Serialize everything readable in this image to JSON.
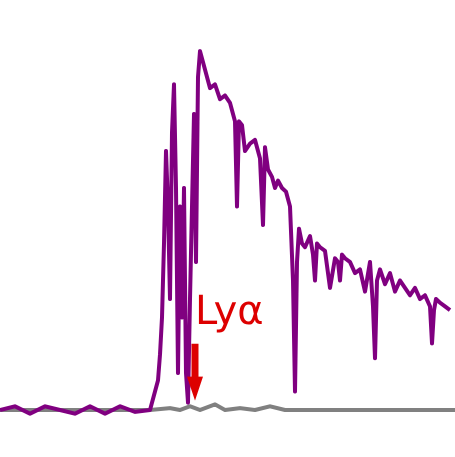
{
  "chart_data": {
    "type": "line",
    "title": "",
    "xlabel": "",
    "ylabel": "",
    "xlim": [
      0,
      455
    ],
    "ylim": [
      -0.05,
      1.0
    ],
    "grid": false,
    "legend": "none",
    "series": [
      {
        "color": "#800080",
        "x": [
          0,
          15,
          30,
          45,
          60,
          75,
          90,
          105,
          120,
          135,
          150,
          155,
          158,
          160,
          162,
          164,
          166,
          168,
          170,
          172,
          174,
          176,
          178,
          180,
          182,
          184,
          186,
          188,
          190,
          192,
          194,
          196,
          198,
          200,
          202,
          204,
          210,
          215,
          220,
          225,
          230,
          235,
          237,
          239,
          242,
          245,
          250,
          255,
          260,
          263,
          265,
          268,
          272,
          275,
          278,
          282,
          286,
          290,
          293,
          295,
          297,
          299,
          302,
          305,
          310,
          313,
          315,
          317,
          320,
          325,
          330,
          335,
          338,
          340,
          342,
          345,
          350,
          355,
          360,
          365,
          370,
          373,
          375,
          377,
          380,
          385,
          390,
          395,
          400,
          405,
          410,
          415,
          420,
          425,
          430,
          432,
          434,
          436,
          440,
          445,
          450
        ],
        "y": [
          0.0,
          0.01,
          -0.01,
          0.01,
          0.0,
          -0.01,
          0.01,
          -0.01,
          0.01,
          -0.005,
          0.0,
          0.05,
          0.08,
          0.15,
          0.25,
          0.45,
          0.7,
          0.55,
          0.3,
          0.75,
          0.88,
          0.6,
          0.1,
          0.55,
          0.25,
          0.6,
          0.1,
          0.02,
          0.3,
          0.55,
          0.8,
          0.4,
          0.9,
          0.97,
          0.95,
          0.93,
          0.87,
          0.88,
          0.84,
          0.85,
          0.83,
          0.78,
          0.55,
          0.78,
          0.77,
          0.7,
          0.72,
          0.73,
          0.68,
          0.5,
          0.71,
          0.65,
          0.63,
          0.6,
          0.62,
          0.6,
          0.59,
          0.55,
          0.35,
          0.05,
          0.4,
          0.49,
          0.45,
          0.44,
          0.47,
          0.42,
          0.35,
          0.45,
          0.44,
          0.43,
          0.33,
          0.41,
          0.4,
          0.35,
          0.42,
          0.41,
          0.4,
          0.37,
          0.38,
          0.32,
          0.4,
          0.28,
          0.14,
          0.35,
          0.38,
          0.34,
          0.37,
          0.32,
          0.35,
          0.33,
          0.31,
          0.33,
          0.3,
          0.31,
          0.28,
          0.18,
          0.27,
          0.3,
          0.29,
          0.28,
          0.27
        ]
      },
      {
        "color": "#808080",
        "x": [
          0,
          30,
          60,
          90,
          120,
          150,
          170,
          180,
          190,
          200,
          215,
          225,
          240,
          255,
          270,
          285,
          300,
          320,
          350,
          400,
          455
        ],
        "y": [
          0.0,
          0.0,
          0.0,
          0.0,
          0.0,
          0.0,
          0.005,
          0.0,
          0.01,
          0.0,
          0.015,
          0.0,
          0.005,
          0.0,
          0.01,
          0.0,
          0.0,
          0.0,
          0.0,
          0.0,
          0.0
        ]
      }
    ],
    "annotations": [
      {
        "text": "Lyα",
        "color": "#dd0000",
        "x": 195,
        "y": 0.26,
        "arrow_to": [
          195,
          0.02
        ]
      }
    ]
  }
}
